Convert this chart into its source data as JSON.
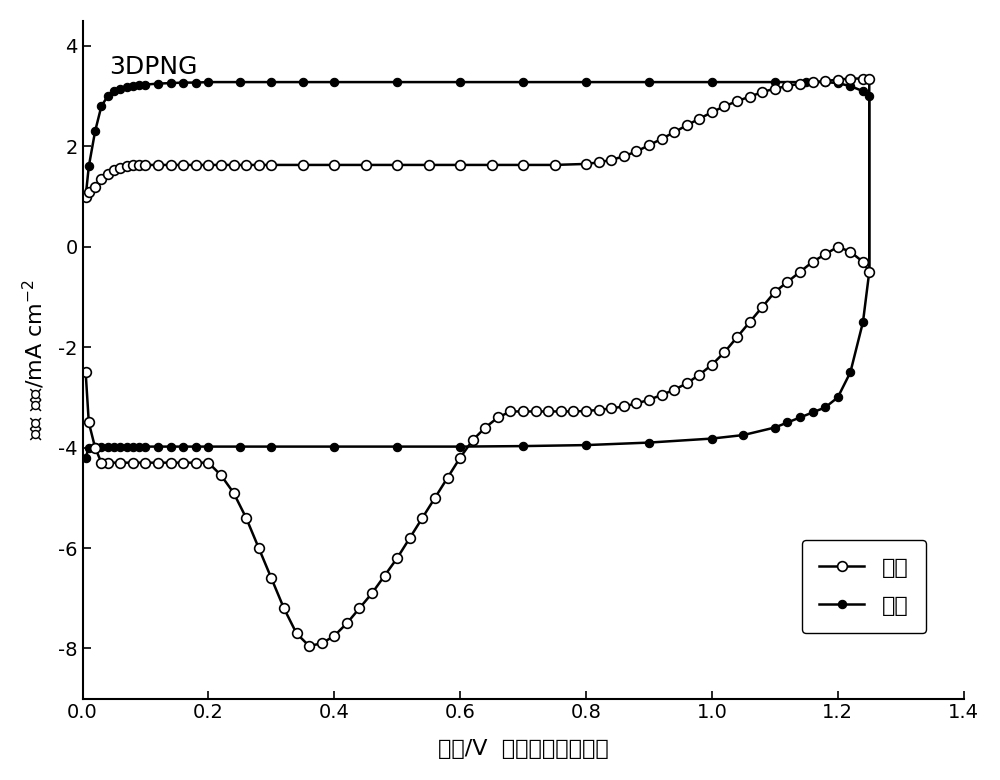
{
  "title": "3DPNG",
  "xlabel": "电位/V  相对于可逆氢电极",
  "ylabel": "电流 密度/mA cm$^{-2}$",
  "xlim": [
    0.0,
    1.4
  ],
  "ylim": [
    -9.0,
    4.5
  ],
  "xticks": [
    0.0,
    0.2,
    0.4,
    0.6,
    0.8,
    1.0,
    1.2,
    1.4
  ],
  "yticks": [
    -8,
    -6,
    -4,
    -2,
    0,
    2,
    4
  ],
  "legend_label_O2": "氧气",
  "legend_label_N2": "氮气",
  "O2_upper_x": [
    0.005,
    0.01,
    0.02,
    0.03,
    0.04,
    0.05,
    0.06,
    0.07,
    0.08,
    0.09,
    0.1,
    0.12,
    0.14,
    0.16,
    0.18,
    0.2,
    0.22,
    0.24,
    0.26,
    0.28,
    0.3,
    0.35,
    0.4,
    0.45,
    0.5,
    0.55,
    0.6,
    0.65,
    0.7,
    0.75,
    0.8,
    0.82,
    0.84,
    0.86,
    0.88,
    0.9,
    0.92,
    0.94,
    0.96,
    0.98,
    1.0,
    1.02,
    1.04,
    1.06,
    1.08,
    1.1,
    1.12,
    1.14,
    1.16,
    1.18,
    1.2,
    1.22,
    1.24,
    1.25
  ],
  "O2_upper_y": [
    1.0,
    1.1,
    1.2,
    1.35,
    1.45,
    1.52,
    1.57,
    1.6,
    1.62,
    1.63,
    1.63,
    1.63,
    1.63,
    1.63,
    1.63,
    1.63,
    1.63,
    1.63,
    1.63,
    1.63,
    1.63,
    1.63,
    1.63,
    1.63,
    1.63,
    1.63,
    1.63,
    1.63,
    1.63,
    1.63,
    1.65,
    1.68,
    1.73,
    1.8,
    1.9,
    2.02,
    2.15,
    2.28,
    2.42,
    2.55,
    2.68,
    2.8,
    2.9,
    2.99,
    3.08,
    3.15,
    3.2,
    3.25,
    3.28,
    3.3,
    3.33,
    3.35,
    3.35,
    3.35
  ],
  "O2_lower_x": [
    1.25,
    1.24,
    1.22,
    1.2,
    1.18,
    1.16,
    1.14,
    1.12,
    1.1,
    1.08,
    1.06,
    1.04,
    1.02,
    1.0,
    0.98,
    0.96,
    0.94,
    0.92,
    0.9,
    0.88,
    0.86,
    0.84,
    0.82,
    0.8,
    0.78,
    0.76,
    0.74,
    0.72,
    0.7,
    0.68,
    0.66,
    0.64,
    0.62,
    0.6,
    0.58,
    0.56,
    0.54,
    0.52,
    0.5,
    0.48,
    0.46,
    0.44,
    0.42,
    0.4,
    0.38,
    0.36,
    0.34,
    0.32,
    0.3,
    0.28,
    0.26,
    0.24,
    0.22,
    0.2,
    0.18,
    0.16,
    0.14,
    0.12,
    0.1,
    0.08,
    0.06,
    0.04,
    0.03,
    0.02,
    0.01,
    0.005
  ],
  "O2_lower_y": [
    -0.5,
    -0.3,
    -0.1,
    0.0,
    -0.15,
    -0.3,
    -0.5,
    -0.7,
    -0.9,
    -1.2,
    -1.5,
    -1.8,
    -2.1,
    -2.35,
    -2.55,
    -2.72,
    -2.85,
    -2.95,
    -3.05,
    -3.12,
    -3.18,
    -3.22,
    -3.25,
    -3.27,
    -3.28,
    -3.28,
    -3.28,
    -3.28,
    -3.28,
    -3.28,
    -3.4,
    -3.6,
    -3.85,
    -4.2,
    -4.6,
    -5.0,
    -5.4,
    -5.8,
    -6.2,
    -6.55,
    -6.9,
    -7.2,
    -7.5,
    -7.75,
    -7.9,
    -7.95,
    -7.7,
    -7.2,
    -6.6,
    -6.0,
    -5.4,
    -4.9,
    -4.55,
    -4.3,
    -4.3,
    -4.3,
    -4.3,
    -4.3,
    -4.3,
    -4.3,
    -4.3,
    -4.3,
    -4.3,
    -4.0,
    -3.5,
    -2.5
  ],
  "N2_upper_x": [
    0.005,
    0.01,
    0.02,
    0.03,
    0.04,
    0.05,
    0.06,
    0.07,
    0.08,
    0.09,
    0.1,
    0.12,
    0.14,
    0.16,
    0.18,
    0.2,
    0.25,
    0.3,
    0.35,
    0.4,
    0.5,
    0.6,
    0.7,
    0.8,
    0.9,
    1.0,
    1.1,
    1.15,
    1.18,
    1.2,
    1.22,
    1.24,
    1.25
  ],
  "N2_upper_y": [
    1.0,
    1.6,
    2.3,
    2.8,
    3.0,
    3.1,
    3.15,
    3.18,
    3.2,
    3.22,
    3.23,
    3.25,
    3.26,
    3.27,
    3.27,
    3.28,
    3.28,
    3.28,
    3.28,
    3.28,
    3.28,
    3.28,
    3.28,
    3.28,
    3.28,
    3.28,
    3.28,
    3.28,
    3.28,
    3.26,
    3.2,
    3.1,
    3.0
  ],
  "N2_lower_x": [
    1.25,
    1.24,
    1.22,
    1.2,
    1.18,
    1.16,
    1.14,
    1.12,
    1.1,
    1.05,
    1.0,
    0.9,
    0.8,
    0.7,
    0.6,
    0.5,
    0.4,
    0.3,
    0.25,
    0.2,
    0.18,
    0.16,
    0.14,
    0.12,
    0.1,
    0.09,
    0.08,
    0.07,
    0.06,
    0.05,
    0.04,
    0.03,
    0.02,
    0.01,
    0.005
  ],
  "N2_lower_y": [
    -0.5,
    -1.5,
    -2.5,
    -3.0,
    -3.2,
    -3.3,
    -3.4,
    -3.5,
    -3.6,
    -3.75,
    -3.82,
    -3.9,
    -3.95,
    -3.97,
    -3.98,
    -3.98,
    -3.98,
    -3.98,
    -3.98,
    -3.98,
    -3.98,
    -3.98,
    -3.98,
    -3.98,
    -3.98,
    -3.98,
    -3.98,
    -3.98,
    -3.98,
    -3.98,
    -3.98,
    -3.98,
    -3.98,
    -4.0,
    -4.2
  ]
}
